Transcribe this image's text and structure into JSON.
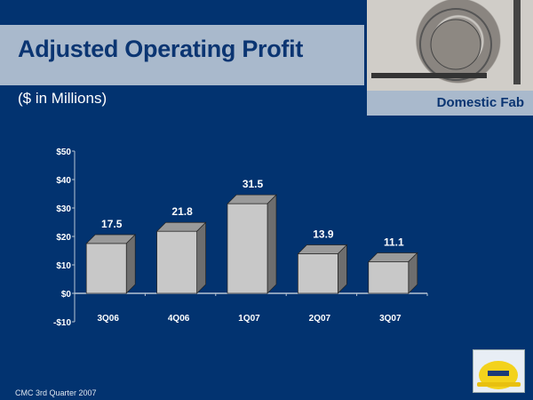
{
  "slide": {
    "title": "Adjusted Operating Profit",
    "subtitle": "($ in Millions)",
    "photo_label": "Domestic Fab",
    "footer": "CMC 3rd Quarter 2007",
    "colors": {
      "background": "#023370",
      "band": "#a9b9cc",
      "title": "#0b3572",
      "bar_front": "#c8c8c8",
      "bar_side": "#6e6e6e",
      "bar_top": "#9a9a9a"
    }
  },
  "chart_data": {
    "type": "bar",
    "categories": [
      "3Q06",
      "4Q06",
      "1Q07",
      "2Q07",
      "3Q07"
    ],
    "values": [
      17.5,
      21.8,
      31.5,
      13.9,
      11.1
    ],
    "data_labels": [
      "17.5",
      "21.8",
      "31.5",
      "13.9",
      "11.1"
    ],
    "ylim": [
      -10,
      50
    ],
    "yticks": [
      -10,
      0,
      10,
      20,
      30,
      40,
      50
    ],
    "ytick_labels": [
      "-$10",
      "$0",
      "$10",
      "$20",
      "$30",
      "$40",
      "$50"
    ],
    "grid": false,
    "style": "3d"
  }
}
